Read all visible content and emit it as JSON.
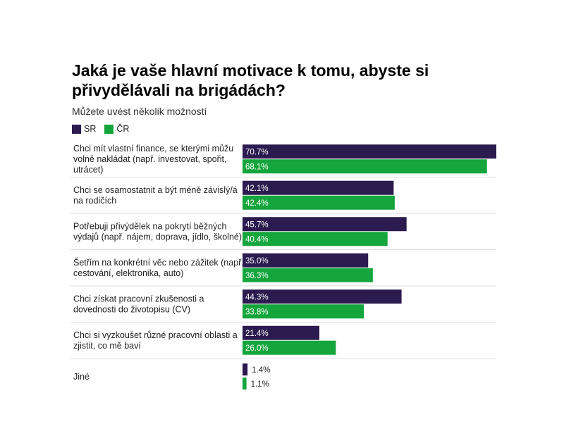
{
  "chart_data": {
    "type": "bar",
    "orientation": "horizontal",
    "title": "Jaká je vaše hlavní motivace k tomu, abyste si přivydělávali na brigádách?",
    "subtitle": "Můžete uvést několik možností",
    "legend_position": "top-left",
    "xlim": [
      0,
      70.7
    ],
    "value_suffix": "%",
    "categories": [
      [
        "Chci mít vlastní finance, se kterými můžu",
        "volně nakládat (např. investovat, spořit,",
        "utrácet)"
      ],
      [
        "Chci se osamostatnit a být méně závislý/á",
        "na rodičích"
      ],
      [
        "Potřebuji přivýdělek na pokrytí běžných",
        "výdajů (např. nájem, doprava, jídlo, školné)"
      ],
      [
        "Šetřím na konkrétní věc nebo zážitek (např.",
        "cestování, elektronika, auto)"
      ],
      [
        "Chci získat pracovní zkušenosti a",
        "dovednosti do životopisu (CV)"
      ],
      [
        "Chci si vyzkoušet různé pracovní oblasti a",
        "zjistit, co mě baví"
      ],
      [
        "Jiné"
      ]
    ],
    "series": [
      {
        "name": "SR",
        "color": "#2b1b4f",
        "values": [
          70.7,
          42.1,
          45.7,
          35.0,
          44.3,
          21.4,
          1.4
        ]
      },
      {
        "name": "ČR",
        "color": "#14a53c",
        "values": [
          68.1,
          42.4,
          40.4,
          36.3,
          33.8,
          26.0,
          1.1
        ]
      }
    ]
  }
}
